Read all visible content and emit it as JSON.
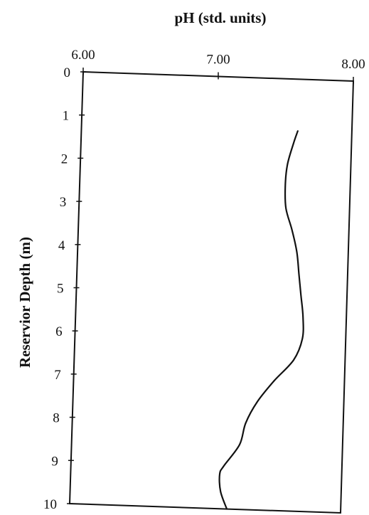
{
  "chart_data": {
    "type": "line",
    "title": "",
    "xlabel": "pH (std. units)",
    "ylabel": "Reservior Depth (m)",
    "xlim": [
      6.0,
      8.0
    ],
    "ylim": [
      0,
      10
    ],
    "x_axis_position": "top",
    "y_axis_inverted": true,
    "grid": false,
    "legend": "none",
    "x_ticks": [
      6.0,
      7.0,
      8.0
    ],
    "x_tick_labels": [
      "6.00",
      "7.00",
      "8.00"
    ],
    "y_ticks": [
      0,
      1,
      2,
      3,
      4,
      5,
      6,
      7,
      8,
      9,
      10
    ],
    "y_tick_labels": [
      "0",
      "1",
      "2",
      "3",
      "4",
      "5",
      "6",
      "7",
      "8",
      "9",
      "10"
    ],
    "series": [
      {
        "color": "#111111",
        "points": [
          {
            "x": 7.6,
            "y": 1.2
          },
          {
            "x": 7.57,
            "y": 1.5
          },
          {
            "x": 7.53,
            "y": 2.0
          },
          {
            "x": 7.52,
            "y": 2.5
          },
          {
            "x": 7.53,
            "y": 3.0
          },
          {
            "x": 7.58,
            "y": 3.5
          },
          {
            "x": 7.62,
            "y": 4.0
          },
          {
            "x": 7.64,
            "y": 4.5
          },
          {
            "x": 7.66,
            "y": 5.0
          },
          {
            "x": 7.68,
            "y": 5.5
          },
          {
            "x": 7.68,
            "y": 6.0
          },
          {
            "x": 7.62,
            "y": 6.5
          },
          {
            "x": 7.48,
            "y": 7.0
          },
          {
            "x": 7.36,
            "y": 7.5
          },
          {
            "x": 7.28,
            "y": 8.0
          },
          {
            "x": 7.24,
            "y": 8.5
          },
          {
            "x": 7.13,
            "y": 9.0
          },
          {
            "x": 7.1,
            "y": 9.2
          },
          {
            "x": 7.11,
            "y": 9.6
          },
          {
            "x": 7.16,
            "y": 10.0
          }
        ]
      }
    ]
  }
}
